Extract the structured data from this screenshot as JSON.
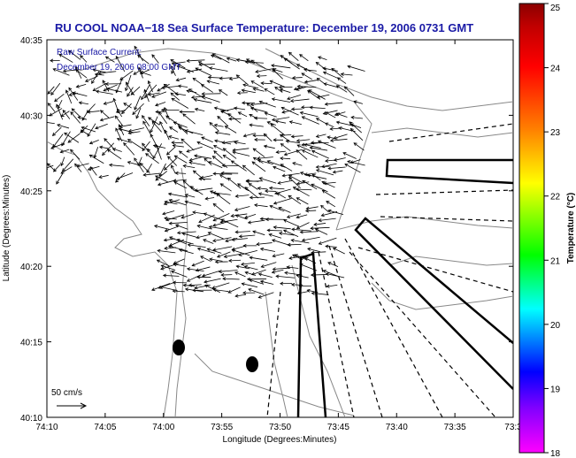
{
  "title": "RU COOL  NOAA−18  Sea Surface Temperature:  December 19, 2006 0731 GMT",
  "annotation": {
    "line1": "Raw Surface Current:",
    "line2": "December 19, 2006 08:00 GMT"
  },
  "scale_label": "50 cm/s",
  "x_axis": {
    "label": "Longitude (Degrees:Minutes)",
    "ticks": [
      "74:10",
      "74:05",
      "74:00",
      "73:55",
      "73:50",
      "73:45",
      "73:40",
      "73:35",
      "73:3"
    ]
  },
  "y_axis": {
    "label": "Latitude (Degrees:Minutes)",
    "ticks": [
      "40:35",
      "40:30",
      "40:25",
      "40:20",
      "40:15",
      "40:10"
    ]
  },
  "colorbar": {
    "label": "Temperature (°C)",
    "ticks": [
      "25",
      "24",
      "23",
      "22",
      "21",
      "20",
      "19",
      "18"
    ],
    "colors": [
      "#8b0000",
      "#ff0000",
      "#ff8000",
      "#ffff00",
      "#00ff00",
      "#00ffff",
      "#0000ff",
      "#ff00ff"
    ]
  }
}
